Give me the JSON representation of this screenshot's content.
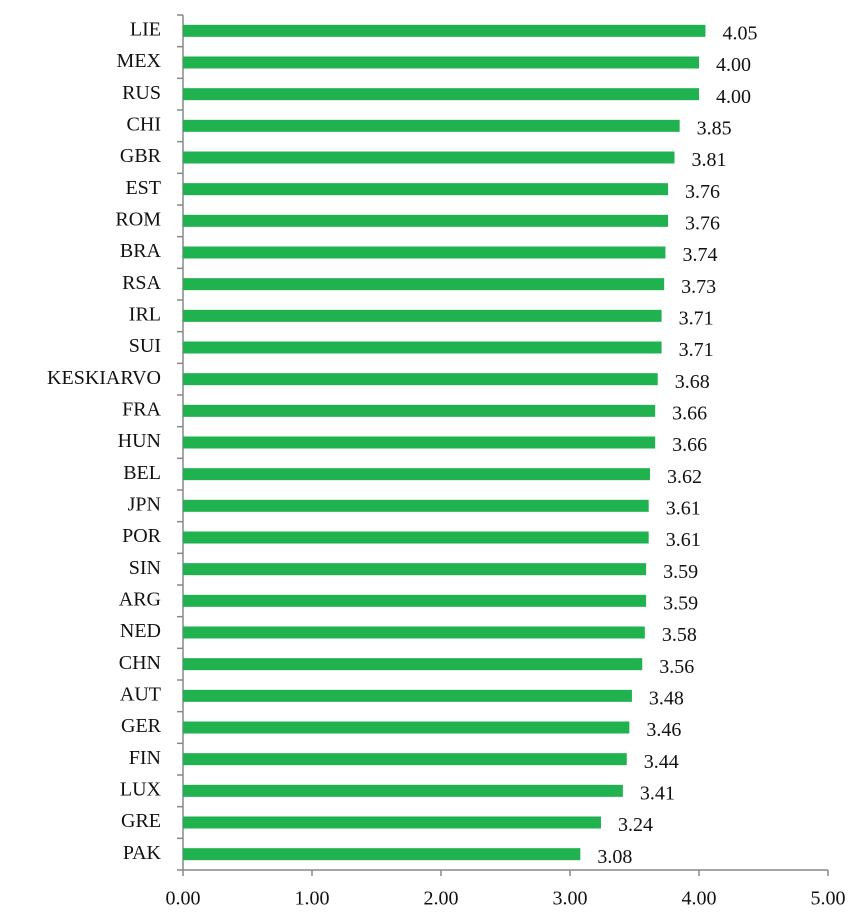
{
  "chart_data": {
    "type": "barh",
    "categories": [
      "LIE",
      "MEX",
      "RUS",
      "CHI",
      "GBR",
      "EST",
      "ROM",
      "BRA",
      "RSA",
      "IRL",
      "SUI",
      "KESKIARVO",
      "FRA",
      "HUN",
      "BEL",
      "JPN",
      "POR",
      "SIN",
      "ARG",
      "NED",
      "CHN",
      "AUT",
      "GER",
      "FIN",
      "LUX",
      "GRE",
      "PAK"
    ],
    "values": [
      4.05,
      4,
      4,
      3.85,
      3.81,
      3.76,
      3.76,
      3.74,
      3.73,
      3.71,
      3.71,
      3.68,
      3.66,
      3.66,
      3.62,
      3.61,
      3.61,
      3.59,
      3.59,
      3.58,
      3.56,
      3.48,
      3.46,
      3.44,
      3.41,
      3.24,
      3.08
    ],
    "value_labels": [
      "4.05",
      "4.00",
      "4.00",
      "3.85",
      "3.81",
      "3.76",
      "3.76",
      "3.74",
      "3.73",
      "3.71",
      "3.71",
      "3.68",
      "3.66",
      "3.66",
      "3.62",
      "3.61",
      "3.61",
      "3.59",
      "3.59",
      "3.58",
      "3.56",
      "3.48",
      "3.46",
      "3.44",
      "3.41",
      "3.24",
      "3.08"
    ],
    "color": "#1fb24f",
    "xlim": [
      0,
      5
    ],
    "xticks": [
      {
        "value": 0,
        "label": "0.00"
      },
      {
        "value": 1,
        "label": "1.00"
      },
      {
        "value": 2,
        "label": "2.00"
      },
      {
        "value": 3,
        "label": "3.00"
      },
      {
        "value": 4,
        "label": "4.00"
      },
      {
        "value": 5,
        "label": "5.00"
      }
    ],
    "grid": false
  }
}
